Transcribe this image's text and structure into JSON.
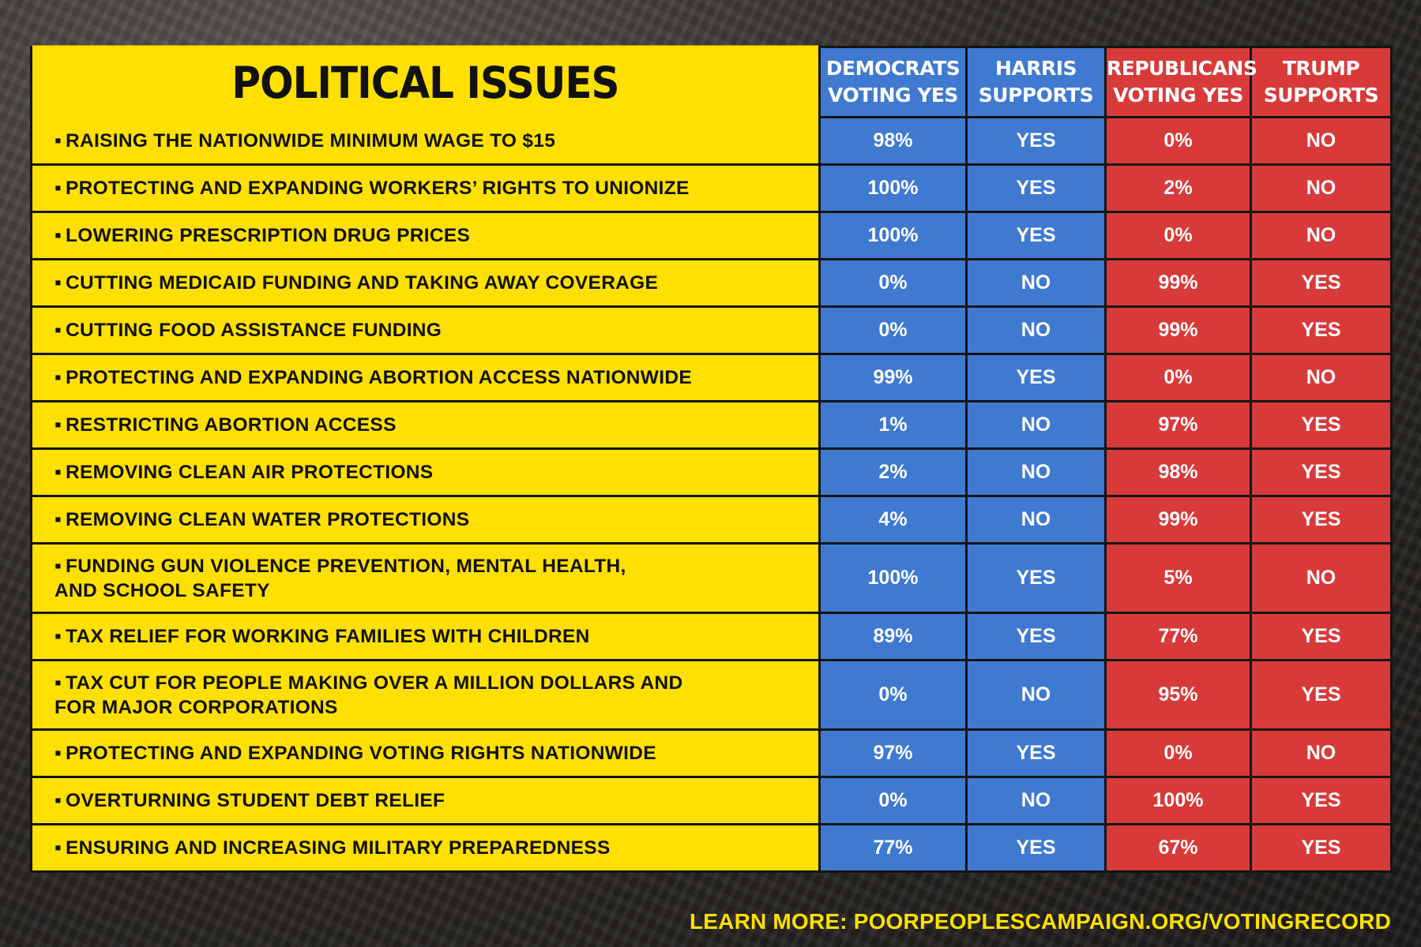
{
  "header": {
    "title": "POLITICAL ISSUES",
    "columns": [
      {
        "line1": "DEMOCRATS",
        "line2": "VOTING YES"
      },
      {
        "line1": "HARRIS",
        "line2": "SUPPORTS"
      },
      {
        "line1": "REPUBLICANS",
        "line2": "VOTING YES"
      },
      {
        "line1": "TRUMP",
        "line2": "SUPPORTS"
      }
    ]
  },
  "bullet": "▪",
  "rows": [
    {
      "issue": "RAISING THE NATIONWIDE MINIMUM WAGE TO $15",
      "dem": "98%",
      "harris": "YES",
      "rep": "0%",
      "trump": "NO"
    },
    {
      "issue": "PROTECTING AND EXPANDING WORKERS’ RIGHTS TO UNIONIZE",
      "dem": "100%",
      "harris": "YES",
      "rep": "2%",
      "trump": "NO"
    },
    {
      "issue": "LOWERING PRESCRIPTION DRUG PRICES",
      "dem": "100%",
      "harris": "YES",
      "rep": "0%",
      "trump": "NO"
    },
    {
      "issue": "CUTTING MEDICAID FUNDING AND TAKING AWAY COVERAGE",
      "dem": "0%",
      "harris": "NO",
      "rep": "99%",
      "trump": "YES"
    },
    {
      "issue": "CUTTING FOOD ASSISTANCE FUNDING",
      "dem": "0%",
      "harris": "NO",
      "rep": "99%",
      "trump": "YES"
    },
    {
      "issue": "PROTECTING AND EXPANDING ABORTION ACCESS NATIONWIDE",
      "dem": "99%",
      "harris": "YES",
      "rep": "0%",
      "trump": "NO"
    },
    {
      "issue": "RESTRICTING ABORTION ACCESS",
      "dem": "1%",
      "harris": "NO",
      "rep": "97%",
      "trump": "YES"
    },
    {
      "issue": "REMOVING CLEAN AIR PROTECTIONS",
      "dem": "2%",
      "harris": "NO",
      "rep": "98%",
      "trump": "YES"
    },
    {
      "issue": "REMOVING CLEAN WATER PROTECTIONS",
      "dem": "4%",
      "harris": "NO",
      "rep": "99%",
      "trump": "YES"
    },
    {
      "issue": "FUNDING GUN VIOLENCE PREVENTION, MENTAL HEALTH,\n  AND SCHOOL SAFETY",
      "dem": "100%",
      "harris": "YES",
      "rep": "5%",
      "trump": "NO"
    },
    {
      "issue": "TAX RELIEF FOR WORKING FAMILIES WITH CHILDREN",
      "dem": "89%",
      "harris": "YES",
      "rep": "77%",
      "trump": "YES"
    },
    {
      "issue": "TAX CUT FOR PEOPLE MAKING OVER A MILLION DOLLARS AND\n  FOR MAJOR CORPORATIONS",
      "dem": "0%",
      "harris": "NO",
      "rep": "95%",
      "trump": "YES"
    },
    {
      "issue": "PROTECTING AND EXPANDING VOTING RIGHTS NATIONWIDE",
      "dem": "97%",
      "harris": "YES",
      "rep": "0%",
      "trump": "NO"
    },
    {
      "issue": "OVERTURNING STUDENT DEBT RELIEF",
      "dem": "0%",
      "harris": "NO",
      "rep": "100%",
      "trump": "YES"
    },
    {
      "issue": "ENSURING AND INCREASING MILITARY PREPAREDNESS",
      "dem": "77%",
      "harris": "YES",
      "rep": "67%",
      "trump": "YES"
    }
  ],
  "footer": {
    "text": "LEARN MORE: POORPEOPLESCAMPAIGN.ORG/VOTINGRECORD"
  },
  "colors": {
    "yellow": "#ffe000",
    "blue": "#3f7ad0",
    "red": "#d83a3a"
  }
}
